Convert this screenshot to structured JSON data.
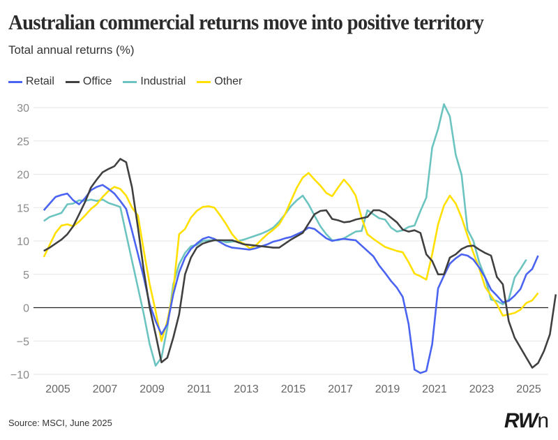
{
  "chart_data": {
    "type": "line",
    "title": "Australian commercial returns move into positive territory",
    "subtitle": "Total annual returns (%)",
    "xlabel": "",
    "ylabel": "",
    "ylim": [
      -10,
      30
    ],
    "xlim": [
      2004.5,
      2025.5
    ],
    "yticks": [
      -10,
      -5,
      0,
      5,
      10,
      15,
      20,
      25,
      30
    ],
    "ytick_labels": [
      "−10",
      "−5",
      "0",
      "5",
      "10",
      "15",
      "20",
      "25",
      "30"
    ],
    "xticks": [
      2005,
      2007,
      2009,
      2011,
      2013,
      2015,
      2017,
      2019,
      2021,
      2023,
      2025
    ],
    "xtick_labels": [
      "2005",
      "2007",
      "2009",
      "2011",
      "2013",
      "2015",
      "2017",
      "2019",
      "2021",
      "2023",
      "2025"
    ],
    "grid": true,
    "legend_position": "top-left",
    "x_start": 2004.4,
    "x_step": 0.25,
    "series": [
      {
        "name": "Retail",
        "color": "#4a63f0",
        "values": [
          14.6,
          15.6,
          16.6,
          16.9,
          17.1,
          16.1,
          15.5,
          16.4,
          17.6,
          18.1,
          18.4,
          17.8,
          17.1,
          16.0,
          14.8,
          11.5,
          8.0,
          4.5,
          0.5,
          -2.0,
          -4.0,
          -2.5,
          2.0,
          5.3,
          7.5,
          8.8,
          9.6,
          10.3,
          10.6,
          10.3,
          9.8,
          9.3,
          9.0,
          8.9,
          8.8,
          8.7,
          8.9,
          9.2,
          9.5,
          9.9,
          10.1,
          10.4,
          10.6,
          11.0,
          11.4,
          12.0,
          11.8,
          11.1,
          10.4,
          10.0,
          10.2,
          10.3,
          10.2,
          10.1,
          9.3,
          8.5,
          7.7,
          6.3,
          5.2,
          4.0,
          3.0,
          1.6,
          -2.5,
          -9.3,
          -9.8,
          -9.5,
          -5.5,
          2.9,
          4.8,
          6.6,
          7.4,
          8.0,
          7.8,
          7.2,
          6.0,
          4.5,
          2.7,
          1.8,
          0.8,
          1.0,
          1.8,
          2.8,
          5.0,
          5.8,
          7.8
        ]
      },
      {
        "name": "Office",
        "color": "#404040",
        "values": [
          8.5,
          9.0,
          9.6,
          10.2,
          11.0,
          12.2,
          14.0,
          15.8,
          18.0,
          19.2,
          20.3,
          20.8,
          21.2,
          22.3,
          21.8,
          18.0,
          12.0,
          5.5,
          0.0,
          -4.0,
          -8.2,
          -7.5,
          -4.5,
          -1.0,
          5.0,
          7.5,
          9.0,
          9.6,
          9.9,
          10.1,
          10.1,
          10.1,
          10.1,
          9.8,
          9.5,
          9.4,
          9.3,
          9.2,
          9.1,
          9.0,
          9.0,
          9.6,
          10.2,
          10.7,
          11.2,
          12.6,
          14.0,
          14.5,
          14.6,
          13.3,
          13.1,
          12.8,
          12.9,
          13.2,
          13.4,
          13.6,
          14.6,
          14.6,
          14.2,
          13.5,
          12.8,
          11.7,
          11.4,
          11.6,
          11.2,
          8.0,
          7.0,
          5.0,
          5.0,
          7.5,
          8.0,
          8.8,
          9.2,
          9.3,
          8.7,
          8.2,
          7.8,
          4.6,
          3.5,
          -2.0,
          -4.5,
          -6.0,
          -7.5,
          -9.0,
          -8.3,
          -6.5,
          -4.0,
          2.0
        ]
      },
      {
        "name": "Industrial",
        "color": "#6cc4c0",
        "values": [
          13.0,
          13.6,
          13.9,
          14.2,
          15.5,
          15.6,
          16.1,
          16.0,
          16.2,
          16.0,
          16.2,
          15.7,
          15.4,
          15.1,
          11.0,
          7.0,
          3.0,
          -1.0,
          -5.5,
          -8.7,
          -7.5,
          -3.0,
          3.5,
          6.5,
          8.2,
          9.2,
          9.4,
          10.0,
          10.1,
          10.1,
          10.1,
          9.8,
          9.9,
          10.0,
          10.2,
          10.5,
          10.8,
          11.1,
          11.5,
          12.0,
          12.9,
          14.0,
          15.2,
          16.1,
          16.8,
          15.5,
          13.8,
          12.2,
          11.0,
          10.1,
          10.1,
          10.4,
          10.9,
          11.4,
          11.5,
          14.6,
          14.0,
          13.4,
          13.2,
          12.0,
          11.4,
          11.6,
          12.1,
          12.3,
          14.5,
          16.5,
          24.0,
          26.8,
          30.5,
          28.7,
          22.9,
          19.9,
          11.7,
          10.0,
          6.8,
          4.5,
          1.2,
          1.0,
          0.5,
          1.2,
          4.5,
          5.8,
          7.2
        ]
      },
      {
        "name": "Other",
        "color": "#ffe000",
        "values": [
          7.6,
          9.4,
          11.2,
          12.3,
          12.5,
          12.2,
          12.9,
          13.8,
          14.8,
          15.5,
          16.6,
          17.5,
          18.1,
          17.8,
          16.8,
          15.0,
          13.8,
          8.5,
          3.5,
          -0.5,
          -5.0,
          -2.0,
          2.5,
          11.0,
          11.8,
          13.5,
          14.5,
          15.1,
          15.2,
          15.0,
          13.8,
          12.5,
          11.0,
          10.0,
          9.6,
          8.9,
          9.3,
          10.2,
          11.0,
          11.7,
          12.5,
          14.0,
          16.0,
          18.0,
          19.5,
          20.2,
          19.2,
          18.3,
          17.2,
          16.7,
          18.0,
          19.2,
          18.2,
          16.8,
          13.5,
          11.0,
          10.3,
          9.7,
          9.1,
          8.8,
          8.5,
          8.3,
          6.8,
          5.1,
          4.7,
          4.2,
          8.0,
          12.5,
          15.3,
          16.8,
          15.6,
          13.5,
          10.8,
          8.2,
          5.9,
          3.1,
          1.8,
          0.5,
          -1.2,
          -1.0,
          -0.8,
          -0.3,
          0.7,
          1.1,
          2.2
        ]
      }
    ]
  },
  "source": "Source: MSCI, June 2025",
  "logo": {
    "main": "RW",
    "tail": "n"
  }
}
